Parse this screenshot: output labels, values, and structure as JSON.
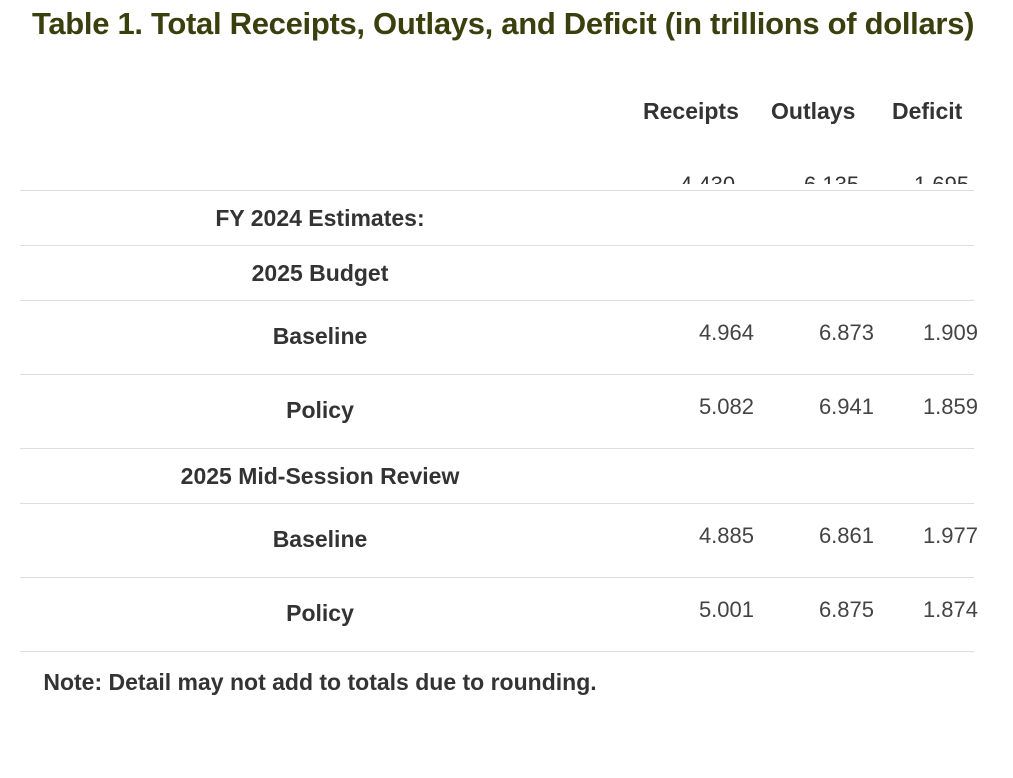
{
  "title": "Table 1. Total Receipts, Outlays, and Deficit (in trillions of dollars)",
  "columns": [
    "Receipts",
    "Outlays",
    "Deficit"
  ],
  "rows": [
    {
      "label": "FY 2024 Estimates:",
      "values": [
        "",
        "",
        ""
      ]
    },
    {
      "label": "2025 Budget",
      "values": [
        "",
        "",
        ""
      ]
    },
    {
      "label": "Baseline",
      "values": [
        "4.964",
        "6.873",
        "1.909"
      ]
    },
    {
      "label": "Policy",
      "values": [
        "5.082",
        "6.941",
        "1.859"
      ]
    },
    {
      "label": "2025 Mid-Session Review",
      "values": [
        "",
        "",
        ""
      ]
    },
    {
      "label": "Baseline",
      "values": [
        "4.885",
        "6.861",
        "1.977"
      ]
    },
    {
      "label": "Policy",
      "values": [
        "5.001",
        "6.875",
        "1.874"
      ]
    }
  ],
  "note": "Note: Detail may not add to totals due to rounding."
}
